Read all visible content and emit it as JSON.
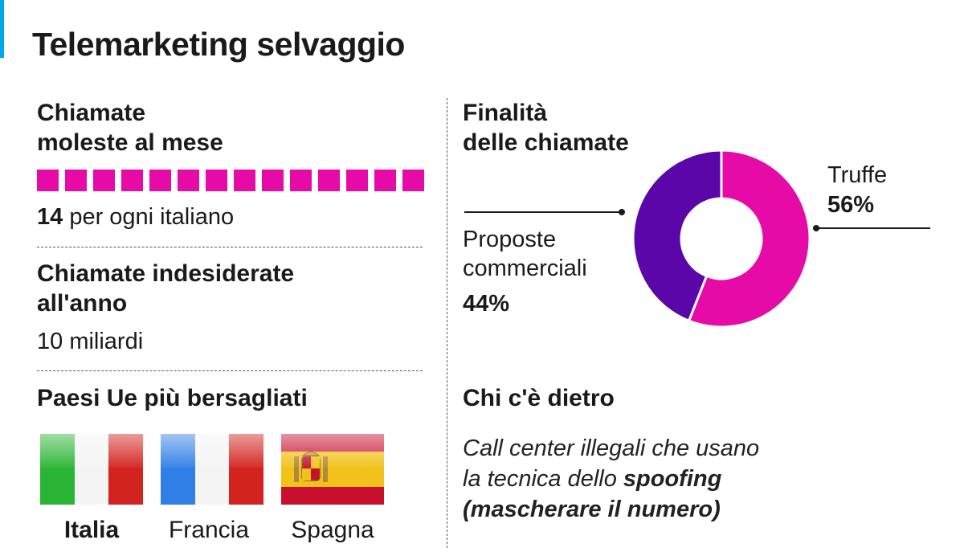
{
  "title": "Telemarketing selvaggio",
  "calls_per_month": {
    "heading_line1": "Chiamate",
    "heading_line2": "moleste al mese",
    "value": "14",
    "value_suffix": " per ogni italiano",
    "icon_count": 14,
    "icon_color": "#e60aa7"
  },
  "unwanted_calls": {
    "heading_line1": "Chiamate indesiderate",
    "heading_line2": "all'anno",
    "value": "10 miliardi"
  },
  "countries": {
    "heading": "Paesi Ue più bersagliati",
    "items": [
      {
        "label": "Italia",
        "flag": "italy-flag",
        "bold": true
      },
      {
        "label": "Francia",
        "flag": "france-flag",
        "bold": false
      },
      {
        "label": "Spagna",
        "flag": "spain-flag",
        "bold": false
      }
    ]
  },
  "purpose": {
    "heading_line1": "Finalità",
    "heading_line2": "delle chiamate"
  },
  "chart_data": {
    "type": "pie",
    "title": "Finalità delle chiamate",
    "slices": [
      {
        "label": "Truffe",
        "value": 56,
        "display": "56%",
        "color": "#e60aa7"
      },
      {
        "label": "Proposte commerciali",
        "value": 44,
        "display": "44%",
        "color": "#5a06a8"
      }
    ]
  },
  "labels": {
    "truffe": "Truffe",
    "truffe_pct": "56%",
    "proposte_line1": "Proposte",
    "proposte_line2": "commerciali",
    "proposte_pct": "44%"
  },
  "behind": {
    "heading": "Chi c'è dietro",
    "line1": "Call center illegali che usano",
    "line2_prefix": "la tecnica dello ",
    "line2_bold": "spoofing",
    "line3_bold": "(mascherare il numero)"
  },
  "colors": {
    "accent": "#00a8e8",
    "magenta": "#e60aa7",
    "purple": "#5a06a8"
  }
}
